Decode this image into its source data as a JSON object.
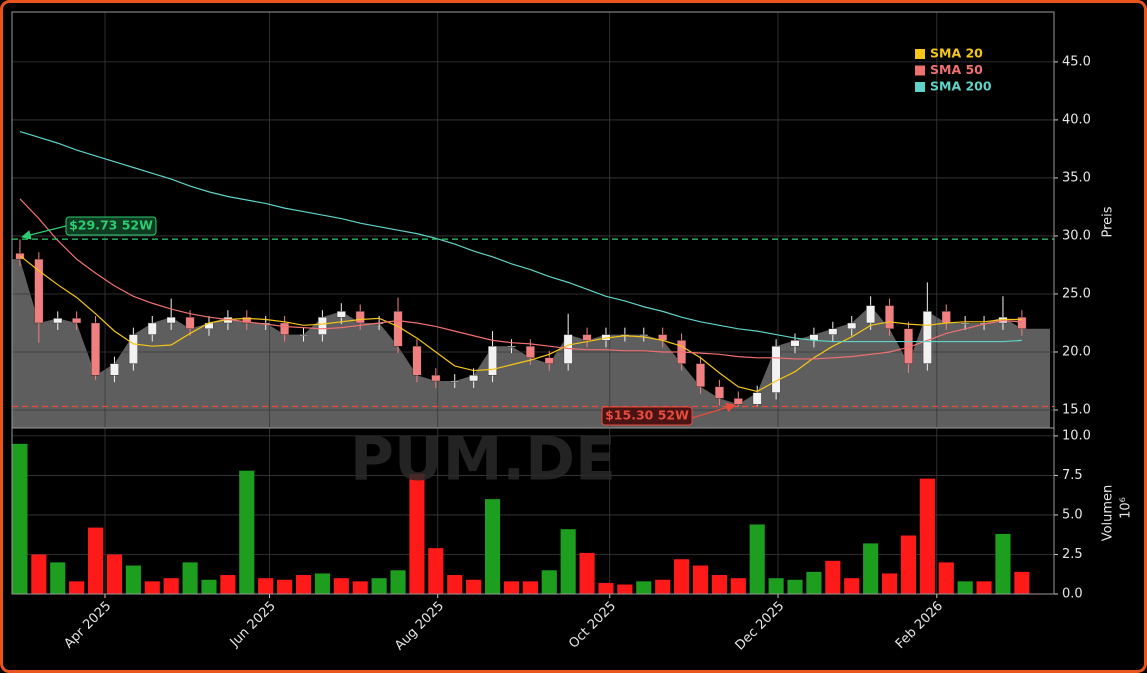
{
  "watermark": "PUM.DE",
  "chart_data": [
    {
      "type": "candlestick",
      "ylabel": "Preis",
      "categories": [
        null,
        null,
        null,
        null,
        null,
        null,
        null,
        null,
        null,
        null,
        null,
        null,
        null,
        null,
        null,
        null,
        null,
        null,
        null,
        null,
        null,
        null,
        null,
        null,
        null,
        null,
        null,
        null,
        null,
        null,
        null,
        null,
        null,
        null,
        null,
        null,
        null,
        null,
        null,
        null,
        null,
        null,
        null,
        null,
        null,
        null,
        null,
        null,
        null,
        null,
        null,
        null,
        null,
        null
      ],
      "open": [
        28.5,
        28,
        22.5,
        22.9,
        22.5,
        18,
        19,
        21.5,
        22.5,
        23,
        22,
        22.5,
        23,
        22.5,
        22.5,
        21.5,
        21.5,
        23,
        23.5,
        22.5,
        23.5,
        20.5,
        18,
        17.5,
        17.5,
        18,
        20.5,
        20.5,
        19.5,
        19,
        21.5,
        21,
        21.5,
        21.5,
        21.5,
        21,
        19,
        17,
        16,
        15.5,
        16.5,
        20.5,
        21,
        21.5,
        22,
        22.5,
        24,
        22,
        19,
        23.5,
        22.5,
        22.5,
        22.5,
        23
      ],
      "high": [
        29.7,
        28.6,
        23.5,
        23.5,
        23.1,
        19.6,
        22.1,
        23.1,
        24.6,
        23.6,
        23.1,
        23.6,
        23.6,
        23.1,
        23.1,
        22.1,
        23.6,
        24.2,
        24.1,
        23.1,
        24.7,
        21.1,
        18.6,
        18.1,
        18.6,
        21.8,
        21.1,
        21.1,
        20.1,
        23.3,
        22.1,
        22.1,
        22.1,
        22.1,
        22.1,
        21.6,
        19.6,
        17.6,
        16.6,
        17.1,
        21.1,
        21.6,
        22.1,
        22.6,
        23.1,
        24.8,
        24.6,
        22.6,
        26.0,
        24.1,
        23.1,
        23.1,
        24.8,
        23.6
      ],
      "low": [
        27.4,
        20.8,
        21.9,
        21.9,
        17.6,
        17.4,
        18.4,
        20.9,
        21.9,
        21.4,
        21.4,
        21.9,
        21.9,
        21.9,
        20.9,
        20.9,
        20.9,
        22.4,
        21.9,
        21.9,
        19.9,
        17.4,
        16.9,
        16.9,
        16.9,
        17.4,
        19.9,
        18.9,
        18.4,
        18.4,
        20.4,
        20.4,
        20.9,
        20.9,
        20.4,
        18.4,
        16.4,
        15.4,
        15.3,
        15.3,
        15.9,
        19.9,
        20.4,
        20.9,
        21.4,
        21.9,
        21.4,
        18.2,
        18.4,
        21.9,
        21.9,
        21.9,
        21.9,
        21.4
      ],
      "close": [
        28,
        22.5,
        22.9,
        22.5,
        18,
        19,
        21.5,
        22.5,
        23,
        22,
        22.5,
        23,
        22.5,
        22.5,
        21.5,
        21.5,
        23,
        23.5,
        22.5,
        22.5,
        20.5,
        18,
        17.5,
        17.5,
        18,
        20.5,
        20.5,
        19.5,
        19,
        21.5,
        21,
        21.5,
        21.5,
        21.5,
        21,
        19,
        17,
        16,
        15.5,
        16.5,
        20.5,
        21,
        21.5,
        22,
        22.5,
        24,
        22,
        19,
        23.5,
        22.5,
        22.5,
        22.5,
        23,
        22
      ],
      "up_color": "#f2f2f2",
      "down_color": "#f08080",
      "area_color": "#5e5e5e",
      "series": [
        {
          "name": "SMA 20",
          "color": "#f5c518",
          "values": [
            28.3,
            27.0,
            25.8,
            24.7,
            23.3,
            21.8,
            20.7,
            20.5,
            20.6,
            21.6,
            22.5,
            22.8,
            22.9,
            22.8,
            22.6,
            22.3,
            22.4,
            22.6,
            22.8,
            22.9,
            22.2,
            21.2,
            20.0,
            18.8,
            18.4,
            18.5,
            18.9,
            19.3,
            19.8,
            20.6,
            20.9,
            21.2,
            21.4,
            21.3,
            21.0,
            20.5,
            19.5,
            18.2,
            17.0,
            16.6,
            17.5,
            18.3,
            19.5,
            20.5,
            21.3,
            22.3,
            22.6,
            22.4,
            22.3,
            22.5,
            22.6,
            22.6,
            22.8,
            22.8
          ]
        },
        {
          "name": "SMA 50",
          "color": "#f07070",
          "values": [
            33.2,
            31.5,
            29.6,
            28.0,
            26.8,
            25.7,
            24.8,
            24.2,
            23.7,
            23.3,
            23.0,
            22.8,
            22.6,
            22.4,
            22.2,
            22.1,
            22.0,
            22.1,
            22.3,
            22.5,
            22.7,
            22.5,
            22.2,
            21.8,
            21.4,
            21.0,
            20.8,
            20.7,
            20.5,
            20.3,
            20.2,
            20.2,
            20.1,
            20.1,
            20.0,
            20.0,
            19.9,
            19.8,
            19.6,
            19.5,
            19.5,
            19.4,
            19.4,
            19.5,
            19.6,
            19.8,
            20.0,
            20.4,
            21.0,
            21.6,
            22.0,
            22.4,
            22.7,
            22.6
          ]
        },
        {
          "name": "SMA 200",
          "color": "#5fd3c8",
          "values": [
            39.0,
            38.5,
            38.0,
            37.4,
            36.9,
            36.4,
            35.9,
            35.4,
            34.9,
            34.3,
            33.8,
            33.4,
            33.1,
            32.8,
            32.4,
            32.1,
            31.8,
            31.5,
            31.1,
            30.8,
            30.5,
            30.2,
            29.8,
            29.3,
            28.7,
            28.2,
            27.6,
            27.1,
            26.5,
            26.0,
            25.4,
            24.8,
            24.4,
            23.9,
            23.5,
            23.0,
            22.6,
            22.3,
            22.0,
            21.8,
            21.5,
            21.2,
            21.0,
            20.9,
            20.9,
            20.9,
            20.9,
            20.9,
            20.9,
            20.9,
            20.9,
            20.9,
            20.9,
            21.0
          ]
        }
      ],
      "annotations": [
        {
          "label": "$29.73 52W",
          "value": 29.73,
          "color": "#2ecc71"
        },
        {
          "label": "$15.30 52W",
          "value": 15.3,
          "color": "#e74c3c"
        }
      ],
      "legend": "upper right",
      "grid": true,
      "ylim": [
        13.45,
        49.3
      ],
      "yticks": [
        {
          "value": 15,
          "label": "15.0"
        },
        {
          "value": 20,
          "label": "20.0"
        },
        {
          "value": 25,
          "label": "25.0"
        },
        {
          "value": 30,
          "label": "30.0"
        },
        {
          "value": 35,
          "label": "35.0"
        },
        {
          "value": 40,
          "label": "40.0"
        },
        {
          "value": 45,
          "label": "45.0"
        }
      ]
    },
    {
      "type": "bar",
      "ylabel": "Volumen",
      "offset_label": "10⁶",
      "categories": [
        null,
        null,
        null,
        null,
        null,
        null,
        null,
        null,
        null,
        null,
        null,
        null,
        null,
        null,
        null,
        null,
        null,
        null,
        null,
        null,
        null,
        null,
        null,
        null,
        null,
        null,
        null,
        null,
        null,
        null,
        null,
        null,
        null,
        null,
        null,
        null,
        null,
        null,
        null,
        null,
        null,
        null,
        null,
        null,
        null,
        null,
        null,
        null,
        null,
        null,
        null,
        null,
        null,
        null
      ],
      "values": [
        9.5,
        2.5,
        2,
        0.8,
        4.2,
        2.5,
        1.8,
        0.8,
        1,
        2,
        0.9,
        1.2,
        7.8,
        1,
        0.9,
        1.2,
        1.3,
        1,
        0.8,
        1,
        1.5,
        7.6,
        2.9,
        1.2,
        0.9,
        6,
        0.8,
        0.8,
        1.5,
        4.1,
        2.6,
        0.7,
        0.6,
        0.8,
        0.9,
        2.2,
        1.8,
        1.2,
        1,
        4.4,
        1,
        0.9,
        1.4,
        2.1,
        1,
        3.2,
        1.3,
        3.7,
        7.3,
        2,
        0.8,
        0.8,
        3.8,
        1.4
      ],
      "colors": [
        "#1e9e1e",
        "#ff1a1a",
        "#1e9e1e",
        "#ff1a1a",
        "#ff1a1a",
        "#ff1a1a",
        "#1e9e1e",
        "#ff1a1a",
        "#ff1a1a",
        "#1e9e1e",
        "#1e9e1e",
        "#ff1a1a",
        "#1e9e1e",
        "#ff1a1a",
        "#ff1a1a",
        "#ff1a1a",
        "#1e9e1e",
        "#ff1a1a",
        "#ff1a1a",
        "#1e9e1e",
        "#1e9e1e",
        "#ff1a1a",
        "#ff1a1a",
        "#ff1a1a",
        "#ff1a1a",
        "#1e9e1e",
        "#ff1a1a",
        "#ff1a1a",
        "#1e9e1e",
        "#1e9e1e",
        "#ff1a1a",
        "#ff1a1a",
        "#ff1a1a",
        "#1e9e1e",
        "#ff1a1a",
        "#ff1a1a",
        "#ff1a1a",
        "#ff1a1a",
        "#ff1a1a",
        "#1e9e1e",
        "#1e9e1e",
        "#1e9e1e",
        "#1e9e1e",
        "#ff1a1a",
        "#ff1a1a",
        "#1e9e1e",
        "#ff1a1a",
        "#ff1a1a",
        "#ff1a1a",
        "#ff1a1a",
        "#1e9e1e",
        "#ff1a1a",
        "#1e9e1e",
        "#ff1a1a"
      ],
      "grid": true,
      "ylim": [
        0,
        10.5
      ],
      "yticks": [
        {
          "value": 0,
          "label": "0.0"
        },
        {
          "value": 2.5,
          "label": "2.5"
        },
        {
          "value": 5,
          "label": "5.0"
        },
        {
          "value": 7.5,
          "label": "7.5"
        },
        {
          "value": 10,
          "label": "10.0"
        }
      ],
      "xlim": [
        -0.42,
        54.7
      ],
      "xticks": [
        {
          "value": 4.5,
          "label": "Apr 2025"
        },
        {
          "value": 13.2,
          "label": "Jun 2025"
        },
        {
          "value": 22.1,
          "label": "Aug 2025"
        },
        {
          "value": 31.2,
          "label": "Oct 2025"
        },
        {
          "value": 40.1,
          "label": "Dec 2025"
        },
        {
          "value": 48.5,
          "label": "Feb 2026"
        }
      ]
    }
  ]
}
